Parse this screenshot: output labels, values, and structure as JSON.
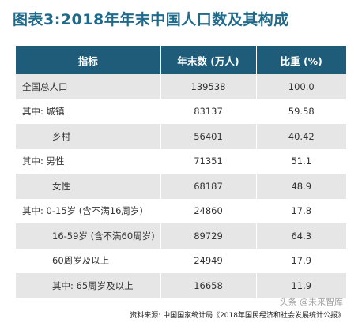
{
  "title": "图表3:2018年年末中国人口数及其构成",
  "table": {
    "headers": [
      "指标",
      "年末数 (万人)",
      "比重 (%)"
    ],
    "rows": [
      {
        "name": "全国总人口",
        "value": "139538",
        "share": "100.0",
        "indent": false
      },
      {
        "name": "其中: 城镇",
        "value": "83137",
        "share": "59.58",
        "indent": false
      },
      {
        "name": "乡村",
        "value": "56401",
        "share": "40.42",
        "indent": true
      },
      {
        "name": "其中: 男性",
        "value": "71351",
        "share": "51.1",
        "indent": false
      },
      {
        "name": "女性",
        "value": "68187",
        "share": "48.9",
        "indent": true
      },
      {
        "name": "其中: 0-15岁 (含不满16周岁)",
        "value": "24860",
        "share": "17.8",
        "indent": false
      },
      {
        "name": "16-59岁 (含不满60周岁)",
        "value": "89729",
        "share": "64.3",
        "indent": true
      },
      {
        "name": "60周岁及以上",
        "value": "24949",
        "share": "17.9",
        "indent": true
      },
      {
        "name": "其中: 65周岁及以上",
        "value": "16658",
        "share": "11.9",
        "indent": true
      }
    ]
  },
  "source": "资料来源: 中国国家统计局《2018年国民经济和社会发展统计公报》",
  "watermark": "头条 @未来智库"
}
